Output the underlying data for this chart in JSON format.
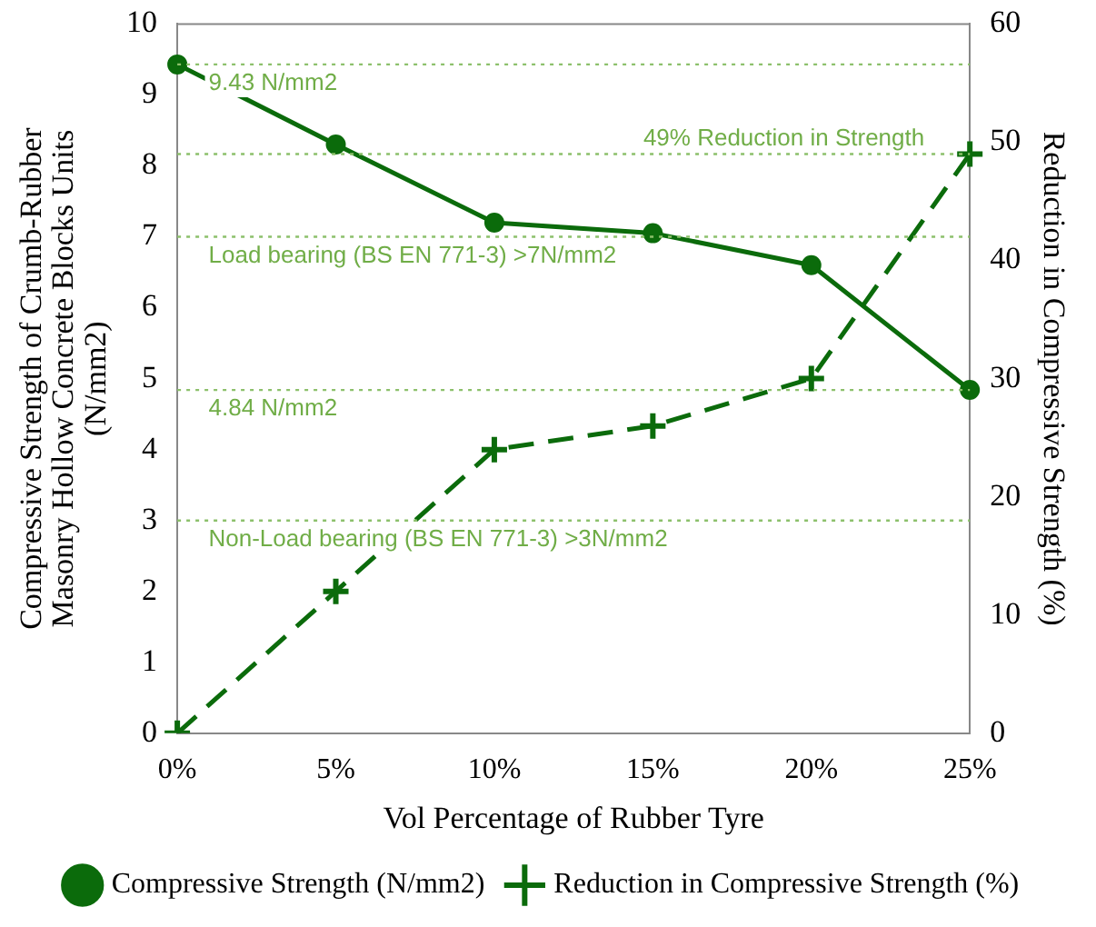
{
  "chart_data": {
    "type": "line",
    "xlabel": "Vol Percentage of Rubber Tyre",
    "ylabel": "Compressive Strength of Crumb-Rubber Masonry Hollow Concrete Blocks Units (N/mm2)",
    "y2label": "Reduction in Compressive Strength (%)",
    "categories": [
      "0%",
      "5%",
      "10%",
      "15%",
      "20%",
      "25%"
    ],
    "series": [
      {
        "name": "Compressive Strength (N/mm2)",
        "color": "#0b6b0b",
        "values": [
          9.43,
          8.3,
          7.2,
          7.05,
          6.6,
          4.84
        ],
        "marker": "circle",
        "line_style": "solid"
      },
      {
        "name": "Reduction in Compressive Strength (%)",
        "color": "#0b6b0b",
        "values": [
          0,
          12,
          24,
          26,
          30,
          49
        ],
        "axis": "y2",
        "marker": "cross",
        "line_style": "dashed"
      }
    ],
    "ylim": [
      0,
      10
    ],
    "yticks": [
      0,
      1,
      2,
      3,
      4,
      5,
      6,
      7,
      8,
      9,
      10
    ],
    "y2lim": [
      0,
      60
    ],
    "y2ticks": [
      0,
      10,
      20,
      30,
      40,
      50,
      60
    ],
    "ref_lines": [
      {
        "axis": "y",
        "value": 9.43,
        "label": "9.43 N/mm2",
        "color": "#8cc06b",
        "line_style": "dotted"
      },
      {
        "axis": "y",
        "value": 7,
        "label": "Load bearing (BS EN 771-3) >7N/mm2",
        "color": "#8cc06b",
        "line_style": "dotted"
      },
      {
        "axis": "y",
        "value": 4.84,
        "label": "4.84 N/mm2",
        "color": "#8cc06b",
        "line_style": "dotted"
      },
      {
        "axis": "y",
        "value": 3,
        "label": "Non-Load bearing (BS EN 771-3) >3N/mm2",
        "color": "#8cc06b",
        "line_style": "dotted"
      },
      {
        "axis": "y2",
        "value": 49,
        "label": "49% Reduction in Strength",
        "color": "#8cc06b",
        "line_style": "dotted"
      }
    ],
    "grid": false,
    "legend": "bottom"
  }
}
